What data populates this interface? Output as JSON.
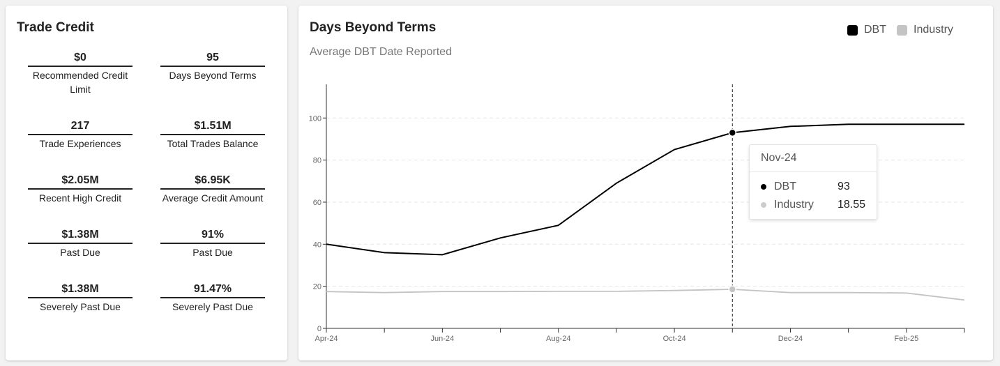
{
  "trade_credit": {
    "title": "Trade Credit",
    "metrics": [
      {
        "value": "$0",
        "label": "Recommended Credit Limit"
      },
      {
        "value": "95",
        "label": "Days Beyond Terms"
      },
      {
        "value": "217",
        "label": "Trade Experiences"
      },
      {
        "value": "$1.51M",
        "label": "Total Trades Balance"
      },
      {
        "value": "$2.05M",
        "label": "Recent High Credit"
      },
      {
        "value": "$6.95K",
        "label": "Average Credit Amount"
      },
      {
        "value": "$1.38M",
        "label": "Past Due"
      },
      {
        "value": "91%",
        "label": "Past Due"
      },
      {
        "value": "$1.38M",
        "label": "Severely Past Due"
      },
      {
        "value": "91.47%",
        "label": "Severely Past Due"
      }
    ]
  },
  "dbt_chart": {
    "title": "Days Beyond Terms",
    "subtitle": "Average DBT Date Reported",
    "legend": [
      {
        "name": "DBT",
        "color": "#000000"
      },
      {
        "name": "Industry",
        "color": "#c4c4c4"
      }
    ],
    "tooltip": {
      "header": "Nov-24",
      "rows": [
        {
          "name": "DBT",
          "value": "93",
          "color": "#000000"
        },
        {
          "name": "Industry",
          "value": "18.55",
          "color": "#cccccc"
        }
      ]
    }
  },
  "chart_data": {
    "type": "line",
    "title": "Days Beyond Terms",
    "subtitle": "Average DBT Date Reported",
    "x": [
      "Apr-24",
      "May-24",
      "Jun-24",
      "Jul-24",
      "Aug-24",
      "Sep-24",
      "Oct-24",
      "Nov-24",
      "Dec-24",
      "Jan-25",
      "Feb-25",
      "Mar-25"
    ],
    "x_tick_labels": [
      "Apr-24",
      "",
      "Jun-24",
      "",
      "Aug-24",
      "",
      "Oct-24",
      "",
      "Dec-24",
      "",
      "Feb-25",
      ""
    ],
    "y_ticks": [
      0,
      20,
      40,
      60,
      80,
      100
    ],
    "y_tick_labels": [
      "0",
      "20",
      "40",
      "60",
      "80",
      "100"
    ],
    "ylim": [
      0,
      116
    ],
    "grid": true,
    "legend_position": "top-right",
    "highlight_index": 7,
    "series": [
      {
        "name": "DBT",
        "color": "#000000",
        "values": [
          40,
          36,
          35,
          43,
          49,
          69,
          85,
          93,
          96,
          97,
          97,
          97
        ]
      },
      {
        "name": "Industry",
        "color": "#c4c4c4",
        "values": [
          17.5,
          17,
          17.5,
          17.5,
          17.6,
          17.6,
          18,
          18.55,
          17,
          17,
          16.8,
          13.5
        ]
      }
    ]
  }
}
